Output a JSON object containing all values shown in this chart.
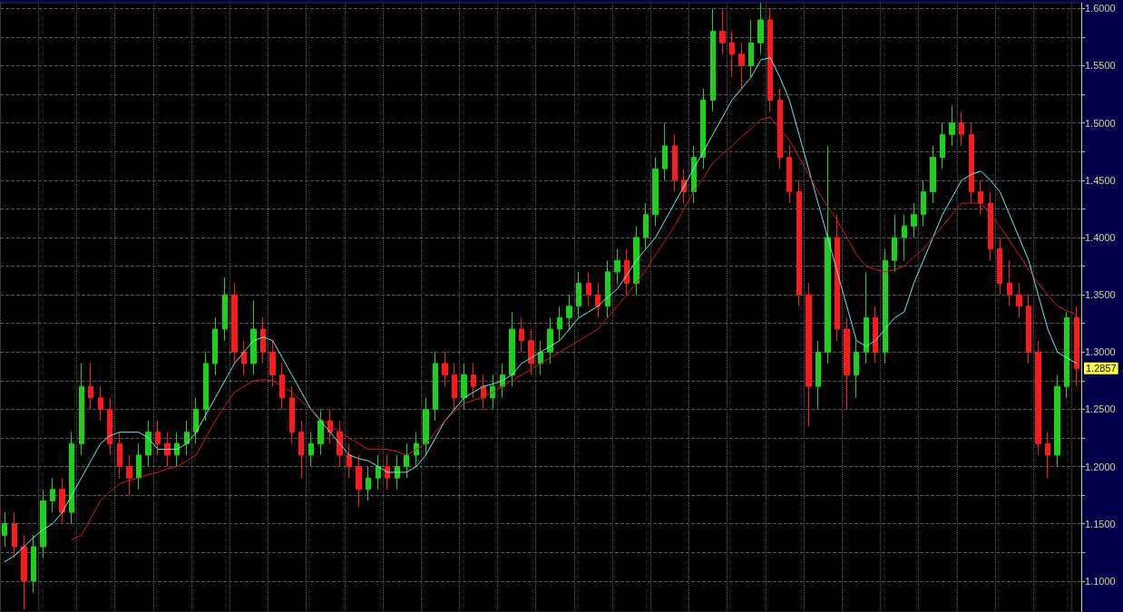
{
  "chart_data": {
    "type": "candlestick",
    "categories": [
      null,
      null,
      null,
      null,
      null,
      null,
      null,
      null,
      null,
      null,
      null,
      null,
      null,
      null,
      null,
      null,
      null,
      null,
      null,
      null,
      null,
      null,
      null,
      null,
      null,
      null,
      null,
      null,
      null,
      null,
      null,
      null,
      null,
      null,
      null,
      null,
      null,
      null,
      null,
      null,
      null,
      null,
      null,
      null,
      null,
      null,
      null,
      null,
      null,
      null,
      null,
      null,
      null,
      null,
      null,
      null,
      null,
      null,
      null,
      null,
      null,
      null,
      null,
      null,
      null,
      null,
      null,
      null,
      null,
      null,
      null,
      null,
      null,
      null,
      null,
      null,
      null,
      null,
      null,
      null,
      null,
      null,
      null,
      null,
      null,
      null,
      null,
      null,
      null,
      null,
      null,
      null,
      null,
      null,
      null,
      null,
      null,
      null,
      null,
      null,
      null,
      null,
      null,
      null,
      null,
      null,
      null,
      null,
      null,
      null,
      null,
      null,
      null
    ],
    "ohlc": [
      [
        1.14,
        1.16,
        1.13,
        1.15
      ],
      [
        1.15,
        1.16,
        1.12,
        1.13
      ],
      [
        1.13,
        1.14,
        1.075,
        1.1
      ],
      [
        1.1,
        1.14,
        1.09,
        1.13
      ],
      [
        1.13,
        1.18,
        1.12,
        1.17
      ],
      [
        1.17,
        1.19,
        1.16,
        1.18
      ],
      [
        1.18,
        1.19,
        1.15,
        1.16
      ],
      [
        1.16,
        1.23,
        1.15,
        1.22
      ],
      [
        1.22,
        1.29,
        1.21,
        1.27
      ],
      [
        1.27,
        1.29,
        1.25,
        1.26
      ],
      [
        1.26,
        1.27,
        1.24,
        1.25
      ],
      [
        1.25,
        1.26,
        1.21,
        1.22
      ],
      [
        1.22,
        1.23,
        1.19,
        1.2
      ],
      [
        1.2,
        1.21,
        1.175,
        1.19
      ],
      [
        1.19,
        1.22,
        1.18,
        1.21
      ],
      [
        1.21,
        1.24,
        1.2,
        1.23
      ],
      [
        1.23,
        1.24,
        1.21,
        1.22
      ],
      [
        1.22,
        1.23,
        1.2,
        1.21
      ],
      [
        1.21,
        1.23,
        1.2,
        1.22
      ],
      [
        1.22,
        1.24,
        1.21,
        1.23
      ],
      [
        1.23,
        1.26,
        1.22,
        1.25
      ],
      [
        1.25,
        1.3,
        1.24,
        1.29
      ],
      [
        1.29,
        1.33,
        1.28,
        1.32
      ],
      [
        1.32,
        1.365,
        1.31,
        1.35
      ],
      [
        1.35,
        1.36,
        1.29,
        1.3
      ],
      [
        1.3,
        1.31,
        1.28,
        1.29
      ],
      [
        1.29,
        1.345,
        1.28,
        1.32
      ],
      [
        1.32,
        1.33,
        1.29,
        1.3
      ],
      [
        1.3,
        1.31,
        1.27,
        1.28
      ],
      [
        1.28,
        1.29,
        1.25,
        1.26
      ],
      [
        1.26,
        1.27,
        1.22,
        1.23
      ],
      [
        1.23,
        1.24,
        1.19,
        1.21
      ],
      [
        1.21,
        1.23,
        1.2,
        1.22
      ],
      [
        1.22,
        1.25,
        1.21,
        1.24
      ],
      [
        1.24,
        1.25,
        1.22,
        1.23
      ],
      [
        1.23,
        1.24,
        1.2,
        1.21
      ],
      [
        1.21,
        1.22,
        1.19,
        1.2
      ],
      [
        1.2,
        1.21,
        1.165,
        1.18
      ],
      [
        1.18,
        1.2,
        1.17,
        1.19
      ],
      [
        1.19,
        1.21,
        1.18,
        1.2
      ],
      [
        1.2,
        1.21,
        1.18,
        1.19
      ],
      [
        1.19,
        1.21,
        1.18,
        1.2
      ],
      [
        1.2,
        1.22,
        1.19,
        1.21
      ],
      [
        1.21,
        1.23,
        1.2,
        1.22
      ],
      [
        1.22,
        1.26,
        1.21,
        1.25
      ],
      [
        1.25,
        1.3,
        1.24,
        1.29
      ],
      [
        1.29,
        1.3,
        1.27,
        1.28
      ],
      [
        1.28,
        1.29,
        1.25,
        1.26
      ],
      [
        1.26,
        1.29,
        1.25,
        1.28
      ],
      [
        1.28,
        1.29,
        1.26,
        1.27
      ],
      [
        1.27,
        1.28,
        1.25,
        1.26
      ],
      [
        1.26,
        1.28,
        1.25,
        1.27
      ],
      [
        1.27,
        1.29,
        1.26,
        1.28
      ],
      [
        1.28,
        1.335,
        1.27,
        1.32
      ],
      [
        1.32,
        1.33,
        1.3,
        1.31
      ],
      [
        1.31,
        1.32,
        1.28,
        1.29
      ],
      [
        1.29,
        1.31,
        1.28,
        1.3
      ],
      [
        1.3,
        1.33,
        1.29,
        1.32
      ],
      [
        1.32,
        1.34,
        1.31,
        1.33
      ],
      [
        1.33,
        1.35,
        1.32,
        1.34
      ],
      [
        1.34,
        1.37,
        1.33,
        1.36
      ],
      [
        1.36,
        1.37,
        1.34,
        1.35
      ],
      [
        1.35,
        1.36,
        1.33,
        1.34
      ],
      [
        1.34,
        1.38,
        1.33,
        1.37
      ],
      [
        1.37,
        1.39,
        1.36,
        1.38
      ],
      [
        1.38,
        1.39,
        1.35,
        1.36
      ],
      [
        1.36,
        1.41,
        1.35,
        1.4
      ],
      [
        1.4,
        1.43,
        1.39,
        1.42
      ],
      [
        1.42,
        1.47,
        1.41,
        1.46
      ],
      [
        1.46,
        1.5,
        1.45,
        1.48
      ],
      [
        1.48,
        1.49,
        1.44,
        1.45
      ],
      [
        1.45,
        1.46,
        1.43,
        1.44
      ],
      [
        1.44,
        1.48,
        1.43,
        1.47
      ],
      [
        1.47,
        1.53,
        1.46,
        1.52
      ],
      [
        1.52,
        1.6,
        1.51,
        1.58
      ],
      [
        1.58,
        1.6,
        1.56,
        1.57
      ],
      [
        1.57,
        1.58,
        1.54,
        1.56
      ],
      [
        1.56,
        1.57,
        1.53,
        1.55
      ],
      [
        1.55,
        1.59,
        1.54,
        1.57
      ],
      [
        1.57,
        1.605,
        1.56,
        1.59
      ],
      [
        1.59,
        1.6,
        1.51,
        1.52
      ],
      [
        1.52,
        1.53,
        1.46,
        1.47
      ],
      [
        1.47,
        1.48,
        1.43,
        1.44
      ],
      [
        1.44,
        1.45,
        1.34,
        1.35
      ],
      [
        1.35,
        1.36,
        1.235,
        1.27
      ],
      [
        1.27,
        1.31,
        1.25,
        1.3
      ],
      [
        1.3,
        1.48,
        1.29,
        1.4
      ],
      [
        1.4,
        1.42,
        1.31,
        1.32
      ],
      [
        1.32,
        1.33,
        1.25,
        1.28
      ],
      [
        1.28,
        1.31,
        1.26,
        1.3
      ],
      [
        1.3,
        1.37,
        1.29,
        1.33
      ],
      [
        1.33,
        1.34,
        1.29,
        1.3
      ],
      [
        1.3,
        1.39,
        1.29,
        1.38
      ],
      [
        1.38,
        1.42,
        1.37,
        1.4
      ],
      [
        1.4,
        1.42,
        1.38,
        1.41
      ],
      [
        1.41,
        1.43,
        1.4,
        1.42
      ],
      [
        1.42,
        1.45,
        1.41,
        1.44
      ],
      [
        1.44,
        1.48,
        1.43,
        1.47
      ],
      [
        1.47,
        1.5,
        1.46,
        1.49
      ],
      [
        1.49,
        1.515,
        1.48,
        1.5
      ],
      [
        1.5,
        1.51,
        1.48,
        1.49
      ],
      [
        1.49,
        1.5,
        1.43,
        1.44
      ],
      [
        1.44,
        1.45,
        1.42,
        1.43
      ],
      [
        1.43,
        1.44,
        1.38,
        1.39
      ],
      [
        1.39,
        1.4,
        1.35,
        1.36
      ],
      [
        1.36,
        1.38,
        1.34,
        1.35
      ],
      [
        1.35,
        1.36,
        1.33,
        1.34
      ],
      [
        1.34,
        1.35,
        1.29,
        1.3
      ],
      [
        1.3,
        1.31,
        1.21,
        1.22
      ],
      [
        1.22,
        1.23,
        1.19,
        1.21
      ],
      [
        1.21,
        1.28,
        1.2,
        1.27
      ],
      [
        1.27,
        1.335,
        1.26,
        1.33
      ],
      [
        1.33,
        1.34,
        1.27,
        1.2857
      ]
    ],
    "series": [
      {
        "type": "line",
        "color": "#66f0f0",
        "values": [
          1.117,
          1.122,
          1.13,
          1.138,
          1.145,
          1.15,
          1.16,
          1.175,
          1.19,
          1.205,
          1.22,
          1.227,
          1.23,
          1.23,
          1.23,
          1.225,
          1.215,
          1.215,
          1.215,
          1.22,
          1.23,
          1.245,
          1.26,
          1.275,
          1.29,
          1.3,
          1.31,
          1.313,
          1.31,
          1.295,
          1.28,
          1.265,
          1.25,
          1.24,
          1.23,
          1.22,
          1.21,
          1.207,
          1.205,
          1.2,
          1.195,
          1.195,
          1.195,
          1.2,
          1.21,
          1.225,
          1.24,
          1.25,
          1.26,
          1.265,
          1.27,
          1.272,
          1.275,
          1.28,
          1.29,
          1.295,
          1.3,
          1.305,
          1.31,
          1.32,
          1.33,
          1.335,
          1.34,
          1.348,
          1.355,
          1.367,
          1.38,
          1.39,
          1.4,
          1.415,
          1.43,
          1.445,
          1.46,
          1.475,
          1.49,
          1.505,
          1.52,
          1.53,
          1.54,
          1.555,
          1.557,
          1.54,
          1.52,
          1.49,
          1.46,
          1.43,
          1.4,
          1.37,
          1.34,
          1.31,
          1.305,
          1.31,
          1.32,
          1.33,
          1.335,
          1.36,
          1.38,
          1.4,
          1.42,
          1.435,
          1.45,
          1.455,
          1.458,
          1.45,
          1.44,
          1.42,
          1.4,
          1.38,
          1.35,
          1.32,
          1.3,
          1.295,
          1.29
        ]
      },
      {
        "type": "line",
        "color": "#e01818",
        "values": [
          null,
          null,
          null,
          null,
          null,
          null,
          null,
          1.136,
          1.14,
          1.155,
          1.17,
          1.178,
          1.185,
          1.188,
          1.19,
          1.193,
          1.195,
          1.198,
          1.2,
          1.205,
          1.21,
          1.225,
          1.24,
          1.253,
          1.265,
          1.27,
          1.275,
          1.276,
          1.275,
          1.27,
          1.265,
          1.257,
          1.25,
          1.242,
          1.235,
          1.23,
          1.225,
          1.22,
          1.215,
          1.215,
          1.215,
          1.213,
          1.21,
          1.215,
          1.22,
          1.23,
          1.24,
          1.248,
          1.255,
          1.258,
          1.26,
          1.265,
          1.27,
          1.275,
          1.28,
          1.285,
          1.29,
          1.295,
          1.3,
          1.305,
          1.31,
          1.315,
          1.32,
          1.33,
          1.34,
          1.35,
          1.36,
          1.372,
          1.385,
          1.397,
          1.41,
          1.425,
          1.44,
          1.452,
          1.465,
          1.473,
          1.48,
          1.488,
          1.495,
          1.503,
          1.505,
          1.495,
          1.485,
          1.47,
          1.455,
          1.44,
          1.427,
          1.415,
          1.4,
          1.385,
          1.375,
          1.372,
          1.37,
          1.372,
          1.375,
          1.383,
          1.39,
          1.4,
          1.41,
          1.42,
          1.43,
          1.43,
          1.43,
          1.42,
          1.41,
          1.397,
          1.385,
          1.372,
          1.36,
          1.35,
          1.34,
          1.336,
          1.333
        ]
      }
    ],
    "ylim": [
      1.073,
      1.605
    ],
    "yticks": [
      {
        "value": 1.1,
        "label": "1.1000"
      },
      {
        "value": 1.125,
        "label": null
      },
      {
        "value": 1.15,
        "label": "1.1500"
      },
      {
        "value": 1.175,
        "label": null
      },
      {
        "value": 1.2,
        "label": "1.2000"
      },
      {
        "value": 1.225,
        "label": null
      },
      {
        "value": 1.25,
        "label": "1.2500"
      },
      {
        "value": 1.275,
        "label": null
      },
      {
        "value": 1.3,
        "label": "1.3000"
      },
      {
        "value": 1.325,
        "label": null
      },
      {
        "value": 1.35,
        "label": "1.3500"
      },
      {
        "value": 1.375,
        "label": null
      },
      {
        "value": 1.4,
        "label": "1.4000"
      },
      {
        "value": 1.425,
        "label": null
      },
      {
        "value": 1.45,
        "label": "1.4500"
      },
      {
        "value": 1.475,
        "label": null
      },
      {
        "value": 1.5,
        "label": "1.5000"
      },
      {
        "value": 1.525,
        "label": null
      },
      {
        "value": 1.55,
        "label": "1.5500"
      },
      {
        "value": 1.575,
        "label": null
      },
      {
        "value": 1.6,
        "label": "1.6000"
      }
    ],
    "annotations": [
      {
        "text": "1.2857",
        "y": 1.2857
      }
    ],
    "grid": true,
    "line_style": "solid",
    "marker": "none"
  }
}
